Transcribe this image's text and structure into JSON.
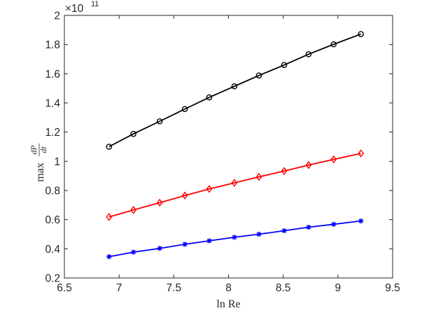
{
  "chart_data": {
    "type": "line",
    "title": "",
    "xlabel": "ln Re",
    "ylabel": {
      "prefix": "max",
      "fraction_numerator": "dP",
      "fraction_denominator": "dt"
    },
    "y_exponent": {
      "base": "×10",
      "power": "11"
    },
    "xlim": [
      6.5,
      9.5
    ],
    "ylim": [
      0.2,
      2.0
    ],
    "x_ticks": [
      "6.5",
      "7",
      "7.5",
      "8",
      "8.5",
      "9",
      "9.5"
    ],
    "y_ticks": [
      "0.2",
      "0.4",
      "0.6",
      "0.8",
      "1",
      "1.2",
      "1.4",
      "1.6",
      "1.8",
      "2"
    ],
    "x_tick_values": [
      6.5,
      7,
      7.5,
      8,
      8.5,
      9,
      9.5
    ],
    "y_tick_values": [
      0.2,
      0.4,
      0.6,
      0.8,
      1.0,
      1.2,
      1.4,
      1.6,
      1.8,
      2.0
    ],
    "grid": false,
    "x": [
      6.908,
      7.131,
      7.371,
      7.601,
      7.824,
      8.054,
      8.278,
      8.509,
      8.732,
      8.961,
      9.21
    ],
    "series": [
      {
        "color": "#000000",
        "marker": "circle",
        "values": [
          1.1,
          1.188,
          1.274,
          1.358,
          1.438,
          1.514,
          1.588,
          1.66,
          1.734,
          1.802,
          1.872
        ]
      },
      {
        "color": "#ff0000",
        "marker": "diamond",
        "values": [
          0.618,
          0.666,
          0.716,
          0.765,
          0.81,
          0.852,
          0.893,
          0.933,
          0.974,
          1.013,
          1.054
        ]
      },
      {
        "color": "#0000ff",
        "marker": "asterisk",
        "values": [
          0.346,
          0.377,
          0.403,
          0.431,
          0.455,
          0.479,
          0.5,
          0.524,
          0.548,
          0.568,
          0.591
        ]
      }
    ]
  }
}
